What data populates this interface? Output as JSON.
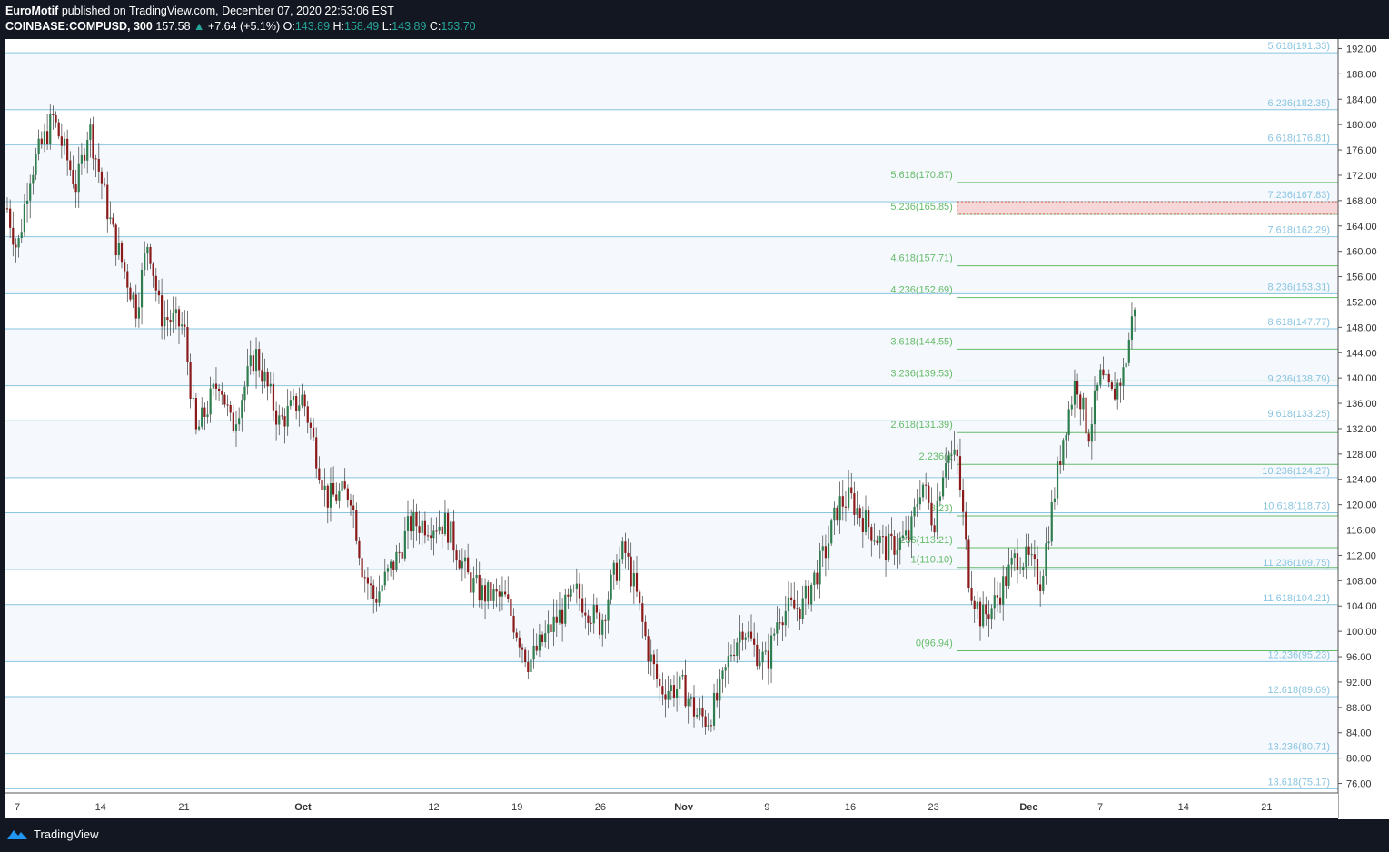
{
  "header": {
    "author": "EuroMotif",
    "published_text": "published on TradingView.com, December 07, 2020 22:53:06 EST",
    "symbol": "COINBASE:COMPUSD, 300",
    "last_price": "157.58",
    "change": "+7.64 (+5.1%)",
    "o_label": "O:",
    "o_value": "143.89",
    "h_label": "H:",
    "h_value": "158.49",
    "l_label": "L:",
    "l_value": "143.89",
    "c_label": "C:",
    "c_value": "153.70"
  },
  "footer": {
    "brand": "TradingView"
  },
  "colors": {
    "up": "#26a69a",
    "candle_up": "#2e7d4f",
    "candle_down": "#8b1a1a",
    "blue_fib": "#89c4e1",
    "green_fib": "#66bb6a",
    "target_zone": "#f6d6d6"
  },
  "chart_data": {
    "type": "candlestick",
    "y_axis_ticks": [
      "76.00",
      "80.00",
      "84.00",
      "88.00",
      "92.00",
      "96.00",
      "100.00",
      "104.00",
      "108.00",
      "112.00",
      "116.00",
      "120.00",
      "124.00",
      "128.00",
      "132.00",
      "136.00",
      "140.00",
      "144.00",
      "148.00",
      "152.00",
      "156.00",
      "160.00",
      "164.00",
      "168.00",
      "172.00",
      "176.00",
      "180.00",
      "184.00",
      "188.00",
      "192.00"
    ],
    "ylim": [
      74.5,
      193.5
    ],
    "x_range": [
      "2020-09-06",
      "2020-12-27"
    ],
    "x_axis_ticks": [
      {
        "label": "7",
        "date": "2020-09-07"
      },
      {
        "label": "14",
        "date": "2020-09-14"
      },
      {
        "label": "21",
        "date": "2020-09-21"
      },
      {
        "label": "Oct",
        "date": "2020-10-01"
      },
      {
        "label": "12",
        "date": "2020-10-12"
      },
      {
        "label": "19",
        "date": "2020-10-19"
      },
      {
        "label": "26",
        "date": "2020-10-26"
      },
      {
        "label": "Nov",
        "date": "2020-11-02"
      },
      {
        "label": "9",
        "date": "2020-11-09"
      },
      {
        "label": "16",
        "date": "2020-11-16"
      },
      {
        "label": "23",
        "date": "2020-11-23"
      },
      {
        "label": "Dec",
        "date": "2020-12-01"
      },
      {
        "label": "7",
        "date": "2020-12-07"
      },
      {
        "label": "14",
        "date": "2020-12-14"
      },
      {
        "label": "21",
        "date": "2020-12-21"
      }
    ],
    "price_path": [
      {
        "date": "2020-09-06",
        "price": 168
      },
      {
        "date": "2020-09-07",
        "price": 160
      },
      {
        "date": "2020-09-08",
        "price": 172
      },
      {
        "date": "2020-09-10",
        "price": 181
      },
      {
        "date": "2020-09-12",
        "price": 170
      },
      {
        "date": "2020-09-13",
        "price": 180
      },
      {
        "date": "2020-09-15",
        "price": 163
      },
      {
        "date": "2020-09-17",
        "price": 151
      },
      {
        "date": "2020-09-18",
        "price": 162
      },
      {
        "date": "2020-09-19",
        "price": 150
      },
      {
        "date": "2020-09-21",
        "price": 148
      },
      {
        "date": "2020-09-22",
        "price": 131
      },
      {
        "date": "2020-09-24",
        "price": 140
      },
      {
        "date": "2020-09-25",
        "price": 132
      },
      {
        "date": "2020-09-27",
        "price": 144
      },
      {
        "date": "2020-09-29",
        "price": 133
      },
      {
        "date": "2020-10-01",
        "price": 137
      },
      {
        "date": "2020-10-02",
        "price": 129
      },
      {
        "date": "2020-10-03",
        "price": 121
      },
      {
        "date": "2020-10-05",
        "price": 122
      },
      {
        "date": "2020-10-06",
        "price": 110
      },
      {
        "date": "2020-10-07",
        "price": 105
      },
      {
        "date": "2020-10-09",
        "price": 112
      },
      {
        "date": "2020-10-10",
        "price": 117
      },
      {
        "date": "2020-10-13",
        "price": 117
      },
      {
        "date": "2020-10-15",
        "price": 108
      },
      {
        "date": "2020-10-16",
        "price": 106
      },
      {
        "date": "2020-10-18",
        "price": 105
      },
      {
        "date": "2020-10-20",
        "price": 95
      },
      {
        "date": "2020-10-22",
        "price": 101
      },
      {
        "date": "2020-10-24",
        "price": 106
      },
      {
        "date": "2020-10-26",
        "price": 101
      },
      {
        "date": "2020-10-27",
        "price": 108
      },
      {
        "date": "2020-10-28",
        "price": 113
      },
      {
        "date": "2020-10-29",
        "price": 106
      },
      {
        "date": "2020-10-30",
        "price": 97
      },
      {
        "date": "2020-10-31",
        "price": 91
      },
      {
        "date": "2020-11-02",
        "price": 91
      },
      {
        "date": "2020-11-03",
        "price": 87
      },
      {
        "date": "2020-11-04",
        "price": 86
      },
      {
        "date": "2020-11-05",
        "price": 90
      },
      {
        "date": "2020-11-06",
        "price": 97
      },
      {
        "date": "2020-11-07",
        "price": 101
      },
      {
        "date": "2020-11-08",
        "price": 97
      },
      {
        "date": "2020-11-09",
        "price": 95
      },
      {
        "date": "2020-11-10",
        "price": 103
      },
      {
        "date": "2020-11-12",
        "price": 104
      },
      {
        "date": "2020-11-14",
        "price": 113
      },
      {
        "date": "2020-11-15",
        "price": 120
      },
      {
        "date": "2020-11-16",
        "price": 121
      },
      {
        "date": "2020-11-17",
        "price": 118
      },
      {
        "date": "2020-11-19",
        "price": 113
      },
      {
        "date": "2020-11-21",
        "price": 115
      },
      {
        "date": "2020-11-22",
        "price": 124
      },
      {
        "date": "2020-11-23",
        "price": 117
      },
      {
        "date": "2020-11-24",
        "price": 128
      },
      {
        "date": "2020-11-25",
        "price": 127
      },
      {
        "date": "2020-11-26",
        "price": 108
      },
      {
        "date": "2020-11-27",
        "price": 102
      },
      {
        "date": "2020-11-28",
        "price": 104
      },
      {
        "date": "2020-11-29",
        "price": 108
      },
      {
        "date": "2020-11-30",
        "price": 112
      },
      {
        "date": "2020-12-01",
        "price": 111
      },
      {
        "date": "2020-12-02",
        "price": 108
      },
      {
        "date": "2020-12-03",
        "price": 120
      },
      {
        "date": "2020-12-04",
        "price": 132
      },
      {
        "date": "2020-12-05",
        "price": 140
      },
      {
        "date": "2020-12-06",
        "price": 131
      },
      {
        "date": "2020-12-07",
        "price": 140
      },
      {
        "date": "2020-12-08",
        "price": 137
      },
      {
        "date": "2020-12-09",
        "price": 141
      },
      {
        "date": "2020-12-10",
        "price": 153
      }
    ],
    "fib_blue": [
      {
        "label": "5.618(191.33)",
        "value": 191.33
      },
      {
        "label": "6.236(182.35)",
        "value": 182.35
      },
      {
        "label": "6.618(176.81)",
        "value": 176.81
      },
      {
        "label": "7.236(167.83)",
        "value": 167.83
      },
      {
        "label": "7.618(162.29)",
        "value": 162.29
      },
      {
        "label": "8.236(153.31)",
        "value": 153.31
      },
      {
        "label": "8.618(147.77)",
        "value": 147.77
      },
      {
        "label": "9.236(138.79)",
        "value": 138.79
      },
      {
        "label": "9.618(133.25)",
        "value": 133.25
      },
      {
        "label": "10.236(124.27)",
        "value": 124.27
      },
      {
        "label": "10.618(118.73)",
        "value": 118.73
      },
      {
        "label": "11.236(109.75)",
        "value": 109.75
      },
      {
        "label": "11.618(104.21)",
        "value": 104.21
      },
      {
        "label": "12.236(95.23)",
        "value": 95.23
      },
      {
        "label": "12.618(89.69)",
        "value": 89.69
      },
      {
        "label": "13.236(80.71)",
        "value": 80.71
      },
      {
        "label": "13.618(75.17)",
        "value": 75.17
      }
    ],
    "fib_green": [
      {
        "label": "5.618(170.87)",
        "value": 170.87
      },
      {
        "label": "5.236(165.85)",
        "value": 165.85
      },
      {
        "label": "4.618(157.71)",
        "value": 157.71
      },
      {
        "label": "4.236(152.69)",
        "value": 152.69
      },
      {
        "label": "3.618(144.55)",
        "value": 144.55
      },
      {
        "label": "3.236(139.53)",
        "value": 139.53
      },
      {
        "label": "2.618(131.39)",
        "value": 131.39
      },
      {
        "label": "2.236(1",
        "value": 126.37
      },
      {
        "label": "8.23)",
        "value": 118.23
      },
      {
        "label": "236(113.21)",
        "value": 113.21
      },
      {
        "label": "1(110.10)",
        "value": 110.1
      },
      {
        "label": "0(96.94)",
        "value": 96.94
      }
    ],
    "fib_green_start_date": "2020-11-25",
    "target_zone": {
      "from": 165.85,
      "to": 167.83
    }
  }
}
